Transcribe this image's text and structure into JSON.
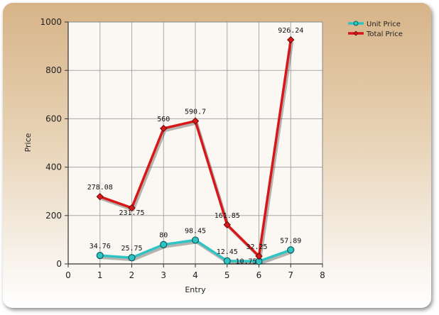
{
  "chart_data": {
    "type": "line",
    "title": "",
    "xlabel": "Entry",
    "ylabel": "Price",
    "xlim": [
      0,
      8
    ],
    "ylim": [
      0,
      1000
    ],
    "x_ticks": [
      "0",
      "1",
      "2",
      "3",
      "4",
      "5",
      "6",
      "7",
      "8"
    ],
    "y_ticks": [
      "0",
      "200",
      "400",
      "600",
      "800",
      "1000"
    ],
    "x": [
      1,
      2,
      3,
      4,
      5,
      6,
      7
    ],
    "grid": true,
    "legend_position": "top-right",
    "series": [
      {
        "name": "Unit Price",
        "color": "#2ec4c4",
        "marker": "circle",
        "values": [
          34.76,
          25.75,
          80,
          98.45,
          12.45,
          10.75,
          57.89
        ],
        "labels": [
          "34.76",
          "25.75",
          "80",
          "98.45",
          "12.45",
          "10.75",
          "57.89"
        ]
      },
      {
        "name": "Total Price",
        "color": "#d81818",
        "marker": "diamond",
        "values": [
          278.08,
          231.75,
          560,
          590.7,
          161.85,
          32.25,
          926.24
        ],
        "labels": [
          "278.08",
          "231.75",
          "560",
          "590.7",
          "161.85",
          "32.25",
          "926.24"
        ]
      }
    ]
  }
}
